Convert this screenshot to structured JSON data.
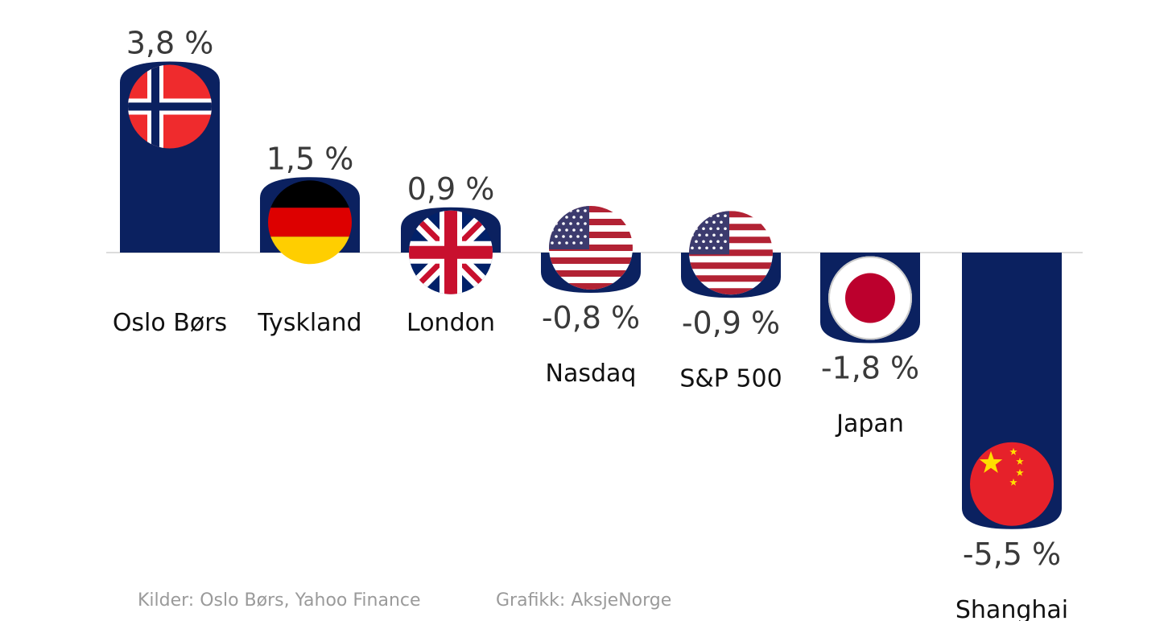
{
  "chart_data": {
    "type": "bar",
    "categories": [
      "Oslo Børs",
      "Tyskland",
      "London",
      "Nasdaq",
      "S&P 500",
      "Japan",
      "Shanghai"
    ],
    "values": [
      3.8,
      1.5,
      0.9,
      -0.8,
      -0.9,
      -1.8,
      -5.5
    ],
    "value_labels": [
      "3,8 %",
      "1,5 %",
      "0,9 %",
      "-0,8 %",
      "-0,9 %",
      "-1,8 %",
      "-5,5 %"
    ],
    "flags": [
      "norway-flag-icon",
      "germany-flag-icon",
      "uk-flag-icon",
      "usa-flag-icon",
      "usa-flag-icon",
      "japan-flag-icon",
      "china-flag-icon"
    ],
    "bar_color": "#0b2160",
    "grid": false,
    "legend": "none"
  },
  "footer": {
    "sources": "Kilder: Oslo Børs, Yahoo Finance",
    "credit": "Grafikk: AksjeNorge"
  }
}
